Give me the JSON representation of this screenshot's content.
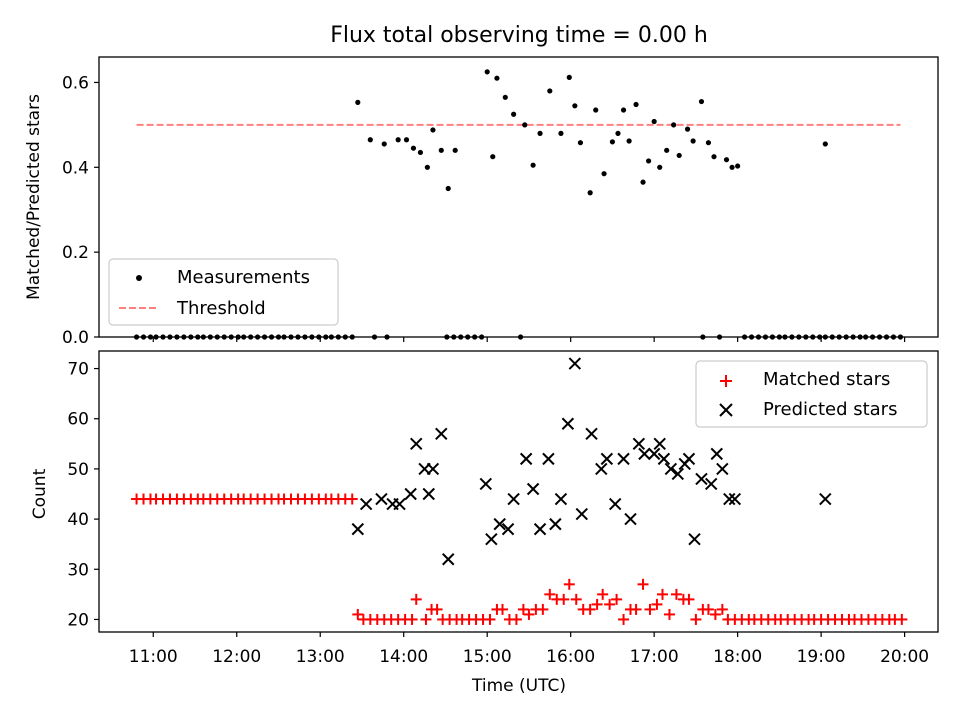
{
  "figure": {
    "title": "Flux total observing time = 0.00 h",
    "colors": {
      "black": "#000000",
      "red": "#ff0000",
      "threshold": "#ff7f7f"
    }
  },
  "chart_data": [
    {
      "type": "scatter",
      "title": "Flux total observing time = 0.00 h",
      "xlabel": "",
      "ylabel": "Matched/Predicted stars",
      "xlim": [
        "10:21",
        "20:24"
      ],
      "ylim": [
        0,
        0.66
      ],
      "yticks": [
        0.0,
        0.2,
        0.4,
        0.6
      ],
      "ytick_labels": [
        "0.0",
        "0.2",
        "0.4",
        "0.6"
      ],
      "legend": {
        "position": "lower-left",
        "entries": [
          "Measurements",
          "Threshold"
        ]
      },
      "series": [
        {
          "name": "Measurements",
          "marker": "dot",
          "color": "#000000",
          "x": [
            "13:27",
            "13:36",
            "13:46",
            "13:56",
            "14:02",
            "14:07",
            "14:12",
            "14:17",
            "14:21",
            "14:27",
            "14:32",
            "14:37",
            "15:00",
            "15:04",
            "15:07",
            "15:13",
            "15:19",
            "15:27",
            "15:33",
            "15:38",
            "15:45",
            "15:53",
            "15:59",
            "16:03",
            "16:07",
            "16:14",
            "16:18",
            "16:24",
            "16:30",
            "16:34",
            "16:38",
            "16:42",
            "16:47",
            "16:52",
            "16:56",
            "17:00",
            "17:04",
            "17:09",
            "17:14",
            "17:18",
            "17:24",
            "17:28",
            "17:34",
            "17:39",
            "17:43",
            "17:52",
            "17:56",
            "18:00",
            "19:03"
          ],
          "y": [
            0.553,
            0.465,
            0.455,
            0.465,
            0.465,
            0.445,
            0.435,
            0.4,
            0.488,
            0.44,
            0.35,
            0.44,
            0.625,
            0.425,
            0.61,
            0.565,
            0.525,
            0.5,
            0.405,
            0.48,
            0.58,
            0.48,
            0.612,
            0.545,
            0.458,
            0.34,
            0.535,
            0.385,
            0.46,
            0.48,
            0.535,
            0.462,
            0.548,
            0.365,
            0.415,
            0.508,
            0.4,
            0.44,
            0.5,
            0.428,
            0.49,
            0.462,
            0.555,
            0.458,
            0.425,
            0.418,
            0.4,
            0.403,
            0.455
          ]
        },
        {
          "name": "Measurements",
          "marker": "dot",
          "color": "#000000",
          "note": "zero-valued points",
          "x": [
            "10:48",
            "10:53",
            "10:58",
            "11:02",
            "11:07",
            "11:12",
            "11:17",
            "11:22",
            "11:27",
            "11:32",
            "11:36",
            "11:41",
            "11:46",
            "11:51",
            "11:56",
            "12:01",
            "12:05",
            "12:10",
            "12:15",
            "12:20",
            "12:25",
            "12:30",
            "12:34",
            "12:39",
            "12:44",
            "12:49",
            "12:54",
            "12:59",
            "13:04",
            "13:08",
            "13:13",
            "13:18",
            "13:23",
            "13:39",
            "13:48",
            "14:31",
            "14:36",
            "14:41",
            "14:46",
            "14:51",
            "14:56",
            "15:24",
            "17:35",
            "17:47",
            "18:05",
            "18:10",
            "18:15",
            "18:20",
            "18:25",
            "18:30",
            "18:34",
            "18:39",
            "18:44",
            "18:49",
            "18:54",
            "18:59",
            "19:03",
            "19:08",
            "19:13",
            "19:18",
            "19:23",
            "19:28",
            "19:32",
            "19:37",
            "19:42",
            "19:47",
            "19:52",
            "19:57"
          ],
          "y": [
            0,
            0,
            0,
            0,
            0,
            0,
            0,
            0,
            0,
            0,
            0,
            0,
            0,
            0,
            0,
            0,
            0,
            0,
            0,
            0,
            0,
            0,
            0,
            0,
            0,
            0,
            0,
            0,
            0,
            0,
            0,
            0,
            0,
            0,
            0,
            0,
            0,
            0,
            0,
            0,
            0,
            0,
            0,
            0,
            0,
            0,
            0,
            0,
            0,
            0,
            0,
            0,
            0,
            0,
            0,
            0,
            0,
            0,
            0,
            0,
            0,
            0,
            0,
            0,
            0,
            0,
            0,
            0
          ]
        },
        {
          "name": "Threshold",
          "marker": "dashed-line",
          "color": "#ff7f7f",
          "x": [
            "10:48",
            "19:57"
          ],
          "y": [
            0.5,
            0.5
          ]
        }
      ]
    },
    {
      "type": "scatter",
      "title": "",
      "xlabel": "Time (UTC)",
      "ylabel": "Count",
      "xlim": [
        "10:21",
        "20:24"
      ],
      "ylim": [
        17.5,
        73.5
      ],
      "yticks": [
        20,
        30,
        40,
        50,
        60,
        70
      ],
      "ytick_labels": [
        "20",
        "30",
        "40",
        "50",
        "60",
        "70"
      ],
      "xticks": [
        "11:00",
        "12:00",
        "13:00",
        "14:00",
        "15:00",
        "16:00",
        "17:00",
        "18:00",
        "19:00",
        "20:00"
      ],
      "xtick_labels": [
        "11:00",
        "12:00",
        "13:00",
        "14:00",
        "15:00",
        "16:00",
        "17:00",
        "18:00",
        "19:00",
        "20:00"
      ],
      "legend": {
        "position": "top-right",
        "entries": [
          "Matched stars",
          "Predicted stars"
        ]
      },
      "series": [
        {
          "name": "Matched stars",
          "marker": "plus",
          "color": "#ff0000",
          "x": [
            "10:48",
            "10:53",
            "10:58",
            "11:02",
            "11:07",
            "11:12",
            "11:17",
            "11:22",
            "11:27",
            "11:32",
            "11:36",
            "11:41",
            "11:46",
            "11:51",
            "11:56",
            "12:01",
            "12:05",
            "12:10",
            "12:15",
            "12:20",
            "12:25",
            "12:30",
            "12:34",
            "12:39",
            "12:44",
            "12:49",
            "12:54",
            "12:59",
            "13:04",
            "13:08",
            "13:13",
            "13:18",
            "13:23",
            "13:27",
            "13:31",
            "13:36",
            "13:41",
            "13:46",
            "13:51",
            "13:56",
            "14:01",
            "14:06",
            "14:09",
            "14:16",
            "14:20",
            "14:24",
            "14:28",
            "14:33",
            "14:38",
            "14:42",
            "14:47",
            "14:52",
            "14:57",
            "15:02",
            "15:07",
            "15:11",
            "15:16",
            "15:21",
            "15:26",
            "15:30",
            "15:35",
            "15:40",
            "15:45",
            "15:50",
            "15:55",
            "15:59",
            "16:04",
            "16:09",
            "16:14",
            "16:19",
            "16:23",
            "16:28",
            "16:33",
            "16:38",
            "16:43",
            "16:47",
            "16:52",
            "16:57",
            "17:02",
            "17:06",
            "17:11",
            "17:16",
            "17:21",
            "17:25",
            "17:30",
            "17:35",
            "17:39",
            "17:44",
            "17:49",
            "17:53",
            "17:58",
            "18:03",
            "18:08",
            "18:12",
            "18:17",
            "18:22",
            "18:27",
            "18:31",
            "18:36",
            "18:41",
            "18:46",
            "18:51",
            "18:55",
            "19:00",
            "19:05",
            "19:10",
            "19:15",
            "19:20",
            "19:24",
            "19:29",
            "19:34",
            "19:39",
            "19:44",
            "19:49",
            "19:53",
            "19:58"
          ],
          "y": [
            44,
            44,
            44,
            44,
            44,
            44,
            44,
            44,
            44,
            44,
            44,
            44,
            44,
            44,
            44,
            44,
            44,
            44,
            44,
            44,
            44,
            44,
            44,
            44,
            44,
            44,
            44,
            44,
            44,
            44,
            44,
            44,
            44,
            21,
            20,
            20,
            20,
            20,
            20,
            20,
            20,
            20,
            24,
            20,
            22,
            22,
            20,
            20,
            20,
            20,
            20,
            20,
            20,
            20,
            22,
            22,
            20,
            20,
            22,
            21,
            22,
            22,
            25,
            24,
            24,
            27,
            24,
            22,
            22,
            23,
            25,
            23,
            24,
            20,
            22,
            22,
            27,
            22,
            23,
            25,
            21,
            25,
            24,
            24,
            20,
            22,
            22,
            21,
            22,
            20,
            20,
            20,
            20,
            20,
            20,
            20,
            20,
            20,
            20,
            20,
            20,
            20,
            20,
            20,
            20,
            20,
            20,
            20,
            20,
            20,
            20,
            20,
            20,
            20,
            20,
            20
          ]
        },
        {
          "name": "Predicted stars",
          "marker": "x",
          "color": "#000000",
          "x": [
            "13:27",
            "13:33",
            "13:44",
            "13:52",
            "13:57",
            "14:05",
            "14:09",
            "14:15",
            "14:18",
            "14:21",
            "14:27",
            "14:32",
            "14:59",
            "15:03",
            "15:09",
            "15:15",
            "15:19",
            "15:28",
            "15:33",
            "15:38",
            "15:44",
            "15:49",
            "15:53",
            "15:58",
            "16:03",
            "16:08",
            "16:15",
            "16:22",
            "16:26",
            "16:32",
            "16:38",
            "16:43",
            "16:49",
            "16:53",
            "17:00",
            "17:04",
            "17:07",
            "17:12",
            "17:17",
            "17:22",
            "17:25",
            "17:29",
            "17:34",
            "17:41",
            "17:45",
            "17:49",
            "17:54",
            "17:58",
            "19:03"
          ],
          "y": [
            38,
            43,
            44,
            43,
            43,
            45,
            55,
            50,
            45,
            50,
            57,
            32,
            47,
            36,
            39,
            38,
            44,
            52,
            46,
            38,
            52,
            39,
            44,
            59,
            71,
            41,
            57,
            50,
            52,
            43,
            52,
            40,
            55,
            53,
            53,
            55,
            52,
            50,
            49,
            51,
            52,
            36,
            48,
            47,
            53,
            50,
            44,
            44,
            44
          ]
        }
      ]
    }
  ]
}
